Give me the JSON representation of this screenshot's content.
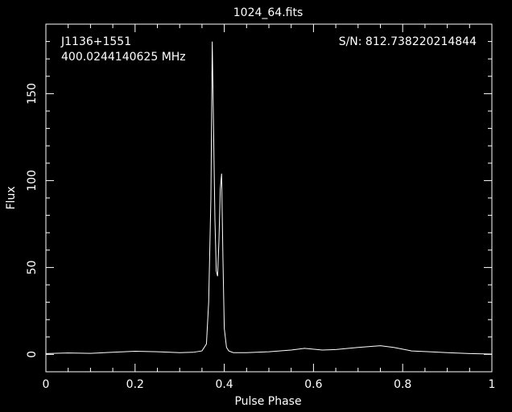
{
  "chart_data": {
    "type": "line",
    "title": "1024_64.fits",
    "xlabel": "Pulse Phase",
    "ylabel": "Flux",
    "xlim": [
      0,
      1
    ],
    "ylim": [
      -10,
      190
    ],
    "x_ticks": [
      0,
      0.2,
      0.4,
      0.6,
      0.8,
      1
    ],
    "x_tick_labels": [
      "0",
      "0.2",
      "0.4",
      "0.6",
      "0.8",
      "1"
    ],
    "y_ticks": [
      0,
      50,
      100,
      150
    ],
    "y_tick_labels": [
      "0",
      "50",
      "100",
      "150"
    ],
    "grid": false,
    "annotations": {
      "source": "J1136+1551",
      "frequency": "400.0244140625 MHz",
      "snr": "S/N: 812.738220214844"
    },
    "series": [
      {
        "x": [
          0,
          0.05,
          0.1,
          0.15,
          0.2,
          0.25,
          0.3,
          0.33,
          0.35,
          0.36,
          0.365,
          0.37,
          0.373,
          0.376,
          0.379,
          0.382,
          0.385,
          0.388,
          0.391,
          0.394,
          0.397,
          0.4,
          0.405,
          0.41,
          0.42,
          0.45,
          0.5,
          0.55,
          0.58,
          0.62,
          0.65,
          0.7,
          0.75,
          0.78,
          0.82,
          0.86,
          0.9,
          0.95,
          1.0
        ],
        "y": [
          0.5,
          0.8,
          0.6,
          1.2,
          1.8,
          1.5,
          1.0,
          1.2,
          2.0,
          6.0,
          30,
          90,
          180,
          130,
          78,
          48,
          45,
          65,
          95,
          104,
          55,
          15,
          4,
          2,
          1.0,
          1.0,
          1.5,
          2.5,
          3.5,
          2.5,
          2.8,
          4.0,
          5.0,
          4.0,
          2.0,
          1.5,
          1.0,
          0.5,
          0.2
        ]
      }
    ]
  }
}
